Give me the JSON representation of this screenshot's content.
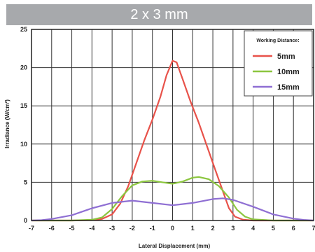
{
  "header": {
    "title": "2 x 3 mm"
  },
  "chart_data": {
    "type": "line",
    "title": "",
    "xlabel": "Lateral Displacement (mm)",
    "ylabel": "Irradiance (W/cm²)",
    "xlim": [
      -7,
      7
    ],
    "ylim": [
      0,
      25
    ],
    "x_ticks": [
      -7,
      -6,
      -5,
      -4,
      -3,
      -2,
      -1,
      0,
      1,
      2,
      3,
      4,
      5,
      6,
      7
    ],
    "y_ticks": [
      0,
      5,
      10,
      15,
      20,
      25
    ],
    "grid": true,
    "legend": {
      "title": "Working Distance:",
      "placement": "top-right"
    },
    "series": [
      {
        "name": "5mm",
        "color": "#e8524a",
        "points": [
          [
            -7,
            0
          ],
          [
            -6,
            0
          ],
          [
            -5,
            0
          ],
          [
            -4,
            0.05
          ],
          [
            -3.5,
            0.2
          ],
          [
            -3,
            0.8
          ],
          [
            -2.6,
            2.2
          ],
          [
            -2.2,
            4.5
          ],
          [
            -1.8,
            7.5
          ],
          [
            -1.4,
            10.5
          ],
          [
            -1,
            13.2
          ],
          [
            -0.6,
            16.2
          ],
          [
            -0.3,
            19.0
          ],
          [
            0,
            20.9
          ],
          [
            0.2,
            20.7
          ],
          [
            0.5,
            18.5
          ],
          [
            0.9,
            15.5
          ],
          [
            1.3,
            12.8
          ],
          [
            1.7,
            9.8
          ],
          [
            2.1,
            6.8
          ],
          [
            2.5,
            3.8
          ],
          [
            2.8,
            1.6
          ],
          [
            3.1,
            0.5
          ],
          [
            3.5,
            0.1
          ],
          [
            4,
            0
          ],
          [
            5,
            0
          ],
          [
            6,
            0
          ],
          [
            7,
            0
          ]
        ]
      },
      {
        "name": "10mm",
        "color": "#8cc63f",
        "points": [
          [
            -7,
            0
          ],
          [
            -6,
            0
          ],
          [
            -5,
            0
          ],
          [
            -4,
            0.1
          ],
          [
            -3.5,
            0.4
          ],
          [
            -3,
            1.5
          ],
          [
            -2.5,
            3.2
          ],
          [
            -2,
            4.6
          ],
          [
            -1.5,
            5.1
          ],
          [
            -1,
            5.2
          ],
          [
            -0.5,
            5.0
          ],
          [
            0,
            4.8
          ],
          [
            0.5,
            5.1
          ],
          [
            1,
            5.6
          ],
          [
            1.3,
            5.7
          ],
          [
            1.8,
            5.4
          ],
          [
            2.3,
            4.5
          ],
          [
            2.8,
            3.0
          ],
          [
            3.2,
            1.4
          ],
          [
            3.6,
            0.5
          ],
          [
            4,
            0.15
          ],
          [
            5,
            0
          ],
          [
            6,
            0
          ],
          [
            7,
            0
          ]
        ]
      },
      {
        "name": "15mm",
        "color": "#8f6fd3",
        "points": [
          [
            -7,
            0
          ],
          [
            -6.5,
            0.05
          ],
          [
            -6,
            0.2
          ],
          [
            -5,
            0.7
          ],
          [
            -4,
            1.6
          ],
          [
            -3,
            2.3
          ],
          [
            -2,
            2.6
          ],
          [
            -1,
            2.3
          ],
          [
            0,
            2.0
          ],
          [
            1,
            2.3
          ],
          [
            2,
            2.8
          ],
          [
            2.5,
            2.9
          ],
          [
            3,
            2.7
          ],
          [
            4,
            1.8
          ],
          [
            5,
            0.8
          ],
          [
            6,
            0.25
          ],
          [
            6.5,
            0.08
          ],
          [
            7,
            0
          ]
        ]
      }
    ]
  }
}
